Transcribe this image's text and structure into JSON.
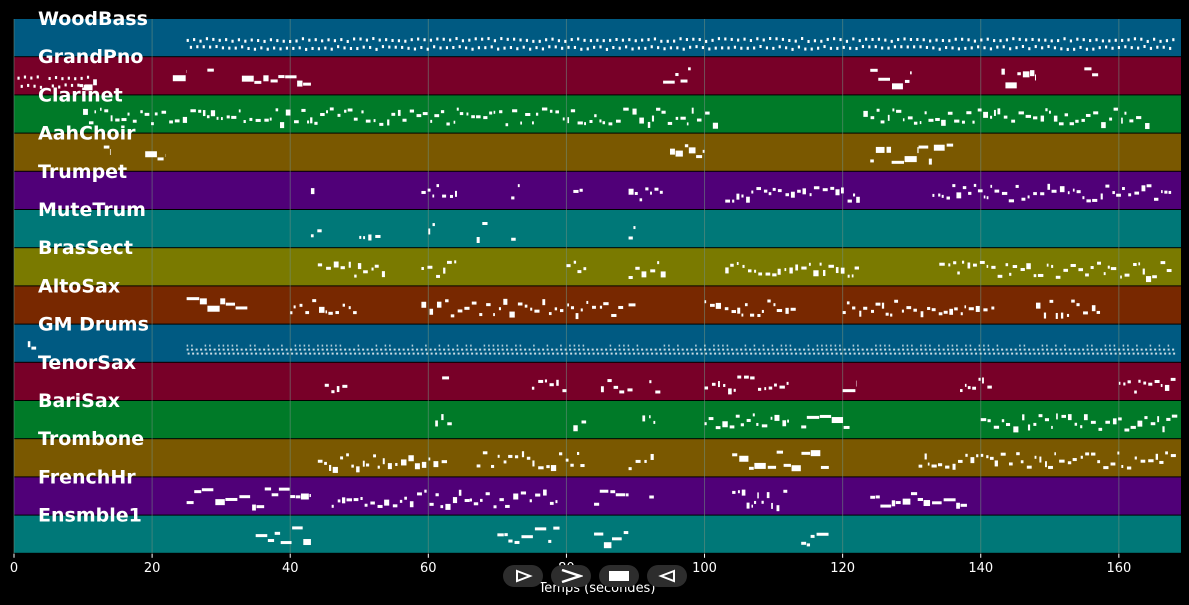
{
  "colors": {
    "background": "#000000",
    "note": "#ffffff",
    "grid": "#6f8f7f",
    "track_label": "#ffffff",
    "axis_text": "#ffffff"
  },
  "tracks": [
    {
      "name": "WoodBass",
      "color": "#005a82"
    },
    {
      "name": "GrandPno",
      "color": "#780028"
    },
    {
      "name": "Clarinet",
      "color": "#007a28"
    },
    {
      "name": "AahChoir",
      "color": "#7a5800"
    },
    {
      "name": "Trumpet",
      "color": "#500078"
    },
    {
      "name": "MuteTrum",
      "color": "#007878"
    },
    {
      "name": "BrasSect",
      "color": "#7a7a00"
    },
    {
      "name": "AltoSax",
      "color": "#782800"
    },
    {
      "name": "GM Drums",
      "color": "#005a82"
    },
    {
      "name": "TenorSax",
      "color": "#780028"
    },
    {
      "name": "BariSax",
      "color": "#007a28"
    },
    {
      "name": "Trombone",
      "color": "#7a5800"
    },
    {
      "name": "FrenchHr",
      "color": "#500078"
    },
    {
      "name": "Ensmble1",
      "color": "#007878"
    }
  ],
  "x_axis": {
    "label": "Temps (secondes)",
    "min": 0,
    "max": 169,
    "ticks": [
      0,
      20,
      40,
      60,
      80,
      100,
      120,
      140,
      160
    ]
  },
  "notes": [
    {
      "track": 1,
      "start": 0.5,
      "end": 4,
      "density": "zigzag"
    },
    {
      "track": 1,
      "start": 5,
      "end": 11,
      "density": "zigzag"
    },
    {
      "track": 1,
      "start": 9.5,
      "end": 12,
      "density": "block"
    },
    {
      "track": 1,
      "start": 23,
      "end": 25,
      "density": "block"
    },
    {
      "track": 1,
      "start": 28,
      "end": 29,
      "density": "block"
    },
    {
      "track": 1,
      "start": 33,
      "end": 43,
      "density": "block"
    },
    {
      "track": 1,
      "start": 94,
      "end": 98,
      "density": "block"
    },
    {
      "track": 1,
      "start": 124,
      "end": 130,
      "density": "block"
    },
    {
      "track": 1,
      "start": 143,
      "end": 148,
      "density": "block"
    },
    {
      "track": 1,
      "start": 155,
      "end": 157,
      "density": "block"
    },
    {
      "track": 0,
      "start": 25,
      "end": 168,
      "density": "zigzag"
    },
    {
      "track": 2,
      "start": 10,
      "end": 102,
      "density": "dots"
    },
    {
      "track": 2,
      "start": 123,
      "end": 164,
      "density": "dots"
    },
    {
      "track": 3,
      "start": 13,
      "end": 14,
      "density": "block"
    },
    {
      "track": 3,
      "start": 19,
      "end": 22,
      "density": "block"
    },
    {
      "track": 3,
      "start": 95,
      "end": 100,
      "density": "block"
    },
    {
      "track": 3,
      "start": 124,
      "end": 131,
      "density": "block"
    },
    {
      "track": 3,
      "start": 131,
      "end": 136,
      "density": "block"
    },
    {
      "track": 4,
      "start": 43,
      "end": 44,
      "density": "dots"
    },
    {
      "track": 4,
      "start": 59,
      "end": 64,
      "density": "dots"
    },
    {
      "track": 4,
      "start": 72,
      "end": 73,
      "density": "dots"
    },
    {
      "track": 4,
      "start": 81,
      "end": 82,
      "density": "dots"
    },
    {
      "track": 4,
      "start": 89,
      "end": 94,
      "density": "dots"
    },
    {
      "track": 4,
      "start": 103,
      "end": 122,
      "density": "dots"
    },
    {
      "track": 4,
      "start": 133,
      "end": 168,
      "density": "dots"
    },
    {
      "track": 5,
      "start": 43,
      "end": 44,
      "density": "dots"
    },
    {
      "track": 5,
      "start": 50,
      "end": 53,
      "density": "dots"
    },
    {
      "track": 5,
      "start": 60,
      "end": 61,
      "density": "dots"
    },
    {
      "track": 5,
      "start": 67,
      "end": 68,
      "density": "dots"
    },
    {
      "track": 5,
      "start": 72,
      "end": 73,
      "density": "dots"
    },
    {
      "track": 5,
      "start": 89,
      "end": 90,
      "density": "block"
    },
    {
      "track": 6,
      "start": 44,
      "end": 54,
      "density": "dots"
    },
    {
      "track": 6,
      "start": 59,
      "end": 64,
      "density": "dots"
    },
    {
      "track": 6,
      "start": 80,
      "end": 83,
      "density": "dots"
    },
    {
      "track": 6,
      "start": 89,
      "end": 94,
      "density": "dots"
    },
    {
      "track": 6,
      "start": 103,
      "end": 122,
      "density": "dots"
    },
    {
      "track": 6,
      "start": 134,
      "end": 168,
      "density": "dots"
    },
    {
      "track": 7,
      "start": 25,
      "end": 34,
      "density": "block"
    },
    {
      "track": 7,
      "start": 40,
      "end": 50,
      "density": "dots"
    },
    {
      "track": 7,
      "start": 59,
      "end": 88,
      "density": "dots"
    },
    {
      "track": 7,
      "start": 89,
      "end": 90,
      "density": "block"
    },
    {
      "track": 7,
      "start": 100,
      "end": 113,
      "density": "dots"
    },
    {
      "track": 7,
      "start": 120,
      "end": 142,
      "density": "dots"
    },
    {
      "track": 7,
      "start": 148,
      "end": 157,
      "density": "dots"
    },
    {
      "track": 8,
      "start": 2,
      "end": 3,
      "density": "dots"
    },
    {
      "track": 8,
      "start": 25,
      "end": 168,
      "density": "drums"
    },
    {
      "track": 9,
      "start": 45,
      "end": 48,
      "density": "dots"
    },
    {
      "track": 9,
      "start": 62,
      "end": 63,
      "density": "block"
    },
    {
      "track": 9,
      "start": 75,
      "end": 80,
      "density": "dots"
    },
    {
      "track": 9,
      "start": 85,
      "end": 89,
      "density": "dots"
    },
    {
      "track": 9,
      "start": 92,
      "end": 94,
      "density": "dots"
    },
    {
      "track": 9,
      "start": 100,
      "end": 112,
      "density": "dots"
    },
    {
      "track": 9,
      "start": 120,
      "end": 122,
      "density": "block"
    },
    {
      "track": 9,
      "start": 137,
      "end": 141,
      "density": "dots"
    },
    {
      "track": 9,
      "start": 160,
      "end": 168,
      "density": "dots"
    },
    {
      "track": 10,
      "start": 61,
      "end": 63,
      "density": "dots"
    },
    {
      "track": 10,
      "start": 81,
      "end": 83,
      "density": "dots"
    },
    {
      "track": 10,
      "start": 91,
      "end": 93,
      "density": "dots"
    },
    {
      "track": 10,
      "start": 100,
      "end": 112,
      "density": "dots"
    },
    {
      "track": 10,
      "start": 114,
      "end": 121,
      "density": "block"
    },
    {
      "track": 10,
      "start": 140,
      "end": 168,
      "density": "dots"
    },
    {
      "track": 11,
      "start": 44,
      "end": 63,
      "density": "dots"
    },
    {
      "track": 11,
      "start": 67,
      "end": 83,
      "density": "dots"
    },
    {
      "track": 11,
      "start": 89,
      "end": 93,
      "density": "dots"
    },
    {
      "track": 11,
      "start": 104,
      "end": 118,
      "density": "block"
    },
    {
      "track": 11,
      "start": 131,
      "end": 168,
      "density": "dots"
    },
    {
      "track": 12,
      "start": 25,
      "end": 43,
      "density": "block"
    },
    {
      "track": 12,
      "start": 46,
      "end": 66,
      "density": "dots"
    },
    {
      "track": 12,
      "start": 66,
      "end": 79,
      "density": "dots"
    },
    {
      "track": 12,
      "start": 84,
      "end": 89,
      "density": "block"
    },
    {
      "track": 12,
      "start": 92,
      "end": 93,
      "density": "dots"
    },
    {
      "track": 12,
      "start": 104,
      "end": 112,
      "density": "dots"
    },
    {
      "track": 12,
      "start": 124,
      "end": 138,
      "density": "block"
    },
    {
      "track": 13,
      "start": 35,
      "end": 43,
      "density": "block"
    },
    {
      "track": 13,
      "start": 70,
      "end": 79,
      "density": "block"
    },
    {
      "track": 13,
      "start": 84,
      "end": 89,
      "density": "block"
    },
    {
      "track": 13,
      "start": 114,
      "end": 118,
      "density": "block"
    }
  ],
  "controls": [
    {
      "name": "play-button",
      "icon": "play-icon"
    },
    {
      "name": "next-button",
      "icon": "next-icon"
    },
    {
      "name": "stop-button",
      "icon": "stop-icon"
    },
    {
      "name": "rewind-button",
      "icon": "rewind-icon"
    }
  ]
}
